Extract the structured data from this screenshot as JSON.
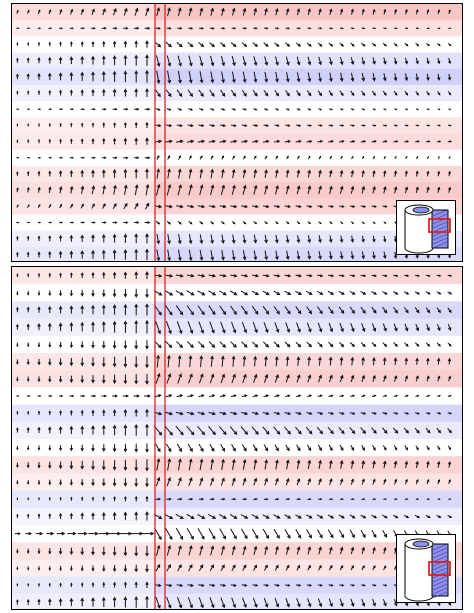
{
  "figure": {
    "panels": [
      {
        "id": "top",
        "rows": 16,
        "bands": [
          {
            "color": "#f4a6a6",
            "strength": 0.65
          },
          {
            "color": "#f4a6a6",
            "strength": 0.35
          },
          {
            "color": "#ffffff",
            "strength": 0.0
          },
          {
            "color": "#a9abf2",
            "strength": 0.35
          },
          {
            "color": "#a9abf2",
            "strength": 0.55
          },
          {
            "color": "#a9abf2",
            "strength": 0.25
          },
          {
            "color": "#ffffff",
            "strength": 0.0
          },
          {
            "color": "#f4a6a6",
            "strength": 0.3
          },
          {
            "color": "#f4a6a6",
            "strength": 0.4
          },
          {
            "color": "#ffffff",
            "strength": 0.0
          },
          {
            "color": "#f4a6a6",
            "strength": 0.45
          },
          {
            "color": "#f4a6a6",
            "strength": 0.6
          },
          {
            "color": "#f4a6a6",
            "strength": 0.5
          },
          {
            "color": "#ffffff",
            "strength": 0.0
          },
          {
            "color": "#a9abf2",
            "strength": 0.3
          },
          {
            "color": "#a9abf2",
            "strength": 0.45
          }
        ],
        "arrows": {
          "left_angles_deg": [
            -70,
            0,
            -90,
            -90,
            -90,
            -90,
            0,
            -90,
            -90,
            0,
            -90,
            -80,
            -60,
            0,
            -90,
            -90
          ],
          "right_angles_deg": [
            -75,
            5,
            40,
            75,
            80,
            55,
            20,
            10,
            -10,
            -60,
            -80,
            -75,
            10,
            40,
            80,
            80
          ],
          "magnitudes": [
            0.6,
            0.3,
            0.5,
            0.8,
            0.9,
            0.6,
            0.3,
            0.4,
            0.5,
            0.3,
            0.7,
            0.8,
            0.5,
            0.3,
            0.7,
            0.8
          ]
        },
        "inset_highlight": "upper"
      },
      {
        "id": "bottom",
        "rows": 20,
        "bands": [
          {
            "color": "#f4a6a6",
            "strength": 0.45
          },
          {
            "color": "#ffffff",
            "strength": 0.0
          },
          {
            "color": "#a9abf2",
            "strength": 0.45
          },
          {
            "color": "#a9abf2",
            "strength": 0.3
          },
          {
            "color": "#ffffff",
            "strength": 0.0
          },
          {
            "color": "#f4a6a6",
            "strength": 0.45
          },
          {
            "color": "#f4a6a6",
            "strength": 0.55
          },
          {
            "color": "#ffffff",
            "strength": 0.0
          },
          {
            "color": "#a9abf2",
            "strength": 0.5
          },
          {
            "color": "#a9abf2",
            "strength": 0.25
          },
          {
            "color": "#ffffff",
            "strength": 0.0
          },
          {
            "color": "#f4a6a6",
            "strength": 0.5
          },
          {
            "color": "#f4a6a6",
            "strength": 0.3
          },
          {
            "color": "#a9abf2",
            "strength": 0.45
          },
          {
            "color": "#a9abf2",
            "strength": 0.2
          },
          {
            "color": "#ffffff",
            "strength": 0.0
          },
          {
            "color": "#f4a6a6",
            "strength": 0.5
          },
          {
            "color": "#f4a6a6",
            "strength": 0.3
          },
          {
            "color": "#a9abf2",
            "strength": 0.45
          },
          {
            "color": "#a9abf2",
            "strength": 0.3
          }
        ],
        "arrows": {
          "left_angles_deg": [
            -90,
            90,
            -90,
            -90,
            90,
            90,
            90,
            0,
            -90,
            -90,
            90,
            90,
            90,
            -90,
            -90,
            0,
            90,
            90,
            -90,
            -90
          ],
          "right_angles_deg": [
            10,
            30,
            55,
            70,
            45,
            -85,
            -70,
            -15,
            15,
            50,
            60,
            -80,
            -70,
            -5,
            30,
            60,
            -75,
            -60,
            10,
            70
          ],
          "magnitudes": [
            0.5,
            0.6,
            0.8,
            0.9,
            0.6,
            0.8,
            0.7,
            0.4,
            0.5,
            0.8,
            0.6,
            0.8,
            0.6,
            0.3,
            0.6,
            0.9,
            0.7,
            0.5,
            0.4,
            0.8
          ]
        },
        "inset_highlight": "middle"
      }
    ],
    "colors": {
      "positive": "#f4a6a6",
      "negative": "#a9abf2",
      "arrow": "#111111",
      "marker_lines": "#e02020",
      "inset_body": "#ffffff",
      "inset_shaded": "#8c8fe8"
    }
  }
}
